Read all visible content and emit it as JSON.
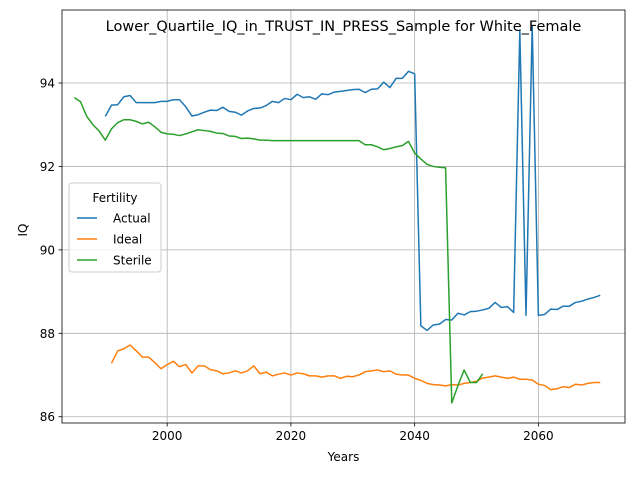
{
  "chart_data": {
    "type": "line",
    "title": "Lower_Quartile_IQ_in_TRUST_IN_PRESS_Sample for White_Female",
    "xlabel": "Years",
    "ylabel": "IQ",
    "xlim": [
      1983,
      2074
    ],
    "ylim": [
      85.85,
      95.75
    ],
    "xticks": [
      2000,
      2020,
      2040,
      2060
    ],
    "yticks": [
      86,
      88,
      90,
      92,
      94
    ],
    "grid": true,
    "legend": {
      "title": "Fertility",
      "placement": "center-left"
    },
    "series": [
      {
        "name": "Actual",
        "color": "#1f77b4",
        "x": [
          1990,
          1991,
          1992,
          1993,
          1994,
          1995,
          1996,
          1997,
          1998,
          1999,
          2000,
          2001,
          2002,
          2003,
          2004,
          2005,
          2006,
          2007,
          2008,
          2009,
          2010,
          2011,
          2012,
          2013,
          2014,
          2015,
          2016,
          2017,
          2018,
          2019,
          2020,
          2021,
          2022,
          2023,
          2024,
          2025,
          2026,
          2027,
          2028,
          2029,
          2030,
          2031,
          2032,
          2033,
          2034,
          2035,
          2036,
          2037,
          2038,
          2039,
          2040,
          2041,
          2042,
          2043,
          2044,
          2045,
          2046,
          2047,
          2048,
          2049,
          2050,
          2051,
          2052,
          2053,
          2054,
          2055,
          2056,
          2057,
          2058,
          2059,
          2060,
          2061,
          2062,
          2063,
          2064,
          2065,
          2066,
          2067,
          2068,
          2069,
          2070
        ],
        "y": [
          93.2,
          93.47,
          93.48,
          93.67,
          93.7,
          93.53,
          93.53,
          93.53,
          93.53,
          93.56,
          93.56,
          93.6,
          93.6,
          93.43,
          93.21,
          93.24,
          93.3,
          93.35,
          93.34,
          93.42,
          93.32,
          93.3,
          93.23,
          93.33,
          93.39,
          93.4,
          93.46,
          93.56,
          93.53,
          93.63,
          93.6,
          93.73,
          93.65,
          93.67,
          93.61,
          93.74,
          93.72,
          93.78,
          93.8,
          93.82,
          93.84,
          93.85,
          93.77,
          93.85,
          93.86,
          94.02,
          93.89,
          94.11,
          94.11,
          94.28,
          94.22,
          88.18,
          88.07,
          88.2,
          88.22,
          88.33,
          88.32,
          88.48,
          88.44,
          88.52,
          88.53,
          88.56,
          88.6,
          88.74,
          88.62,
          88.64,
          88.5,
          95.25,
          88.43,
          95.35,
          88.43,
          88.45,
          88.58,
          88.57,
          88.65,
          88.65,
          88.74,
          88.77,
          88.82,
          88.86,
          88.91
        ]
      },
      {
        "name": "Ideal",
        "color": "#ff7f0e",
        "x": [
          1991,
          1992,
          1993,
          1994,
          1995,
          1996,
          1997,
          1998,
          1999,
          2000,
          2001,
          2002,
          2003,
          2004,
          2005,
          2006,
          2007,
          2008,
          2009,
          2010,
          2011,
          2012,
          2013,
          2014,
          2015,
          2016,
          2017,
          2018,
          2019,
          2020,
          2021,
          2022,
          2023,
          2024,
          2025,
          2026,
          2027,
          2028,
          2029,
          2030,
          2031,
          2032,
          2033,
          2034,
          2035,
          2036,
          2037,
          2038,
          2039,
          2040,
          2041,
          2042,
          2043,
          2044,
          2045,
          2046,
          2047,
          2048,
          2049,
          2050,
          2051,
          2052,
          2053,
          2054,
          2055,
          2056,
          2057,
          2058,
          2059,
          2060,
          2061,
          2062,
          2063,
          2064,
          2065,
          2066,
          2067,
          2068,
          2069,
          2070
        ],
        "y": [
          87.28,
          87.58,
          87.63,
          87.72,
          87.58,
          87.43,
          87.43,
          87.3,
          87.15,
          87.25,
          87.33,
          87.2,
          87.25,
          87.05,
          87.22,
          87.22,
          87.13,
          87.1,
          87.03,
          87.05,
          87.1,
          87.05,
          87.1,
          87.22,
          87.03,
          87.07,
          86.98,
          87.02,
          87.05,
          87.0,
          87.05,
          87.03,
          86.98,
          86.98,
          86.95,
          86.98,
          86.98,
          86.92,
          86.97,
          86.96,
          87.0,
          87.08,
          87.1,
          87.12,
          87.08,
          87.1,
          87.02,
          87.0,
          87.0,
          86.92,
          86.87,
          86.8,
          86.77,
          86.76,
          86.74,
          86.77,
          86.76,
          86.8,
          86.82,
          86.85,
          86.93,
          86.95,
          86.98,
          86.95,
          86.92,
          86.95,
          86.9,
          86.9,
          86.88,
          86.78,
          86.75,
          86.65,
          86.67,
          86.72,
          86.7,
          86.78,
          86.76,
          86.8,
          86.82,
          86.82
        ]
      },
      {
        "name": "Sterile",
        "color": "#2ca02c",
        "x": [
          1985,
          1986,
          1987,
          1988,
          1989,
          1990,
          1991,
          1992,
          1993,
          1994,
          1995,
          1996,
          1997,
          1998,
          1999,
          2000,
          2001,
          2002,
          2003,
          2004,
          2005,
          2006,
          2007,
          2008,
          2009,
          2010,
          2011,
          2012,
          2013,
          2014,
          2015,
          2016,
          2017,
          2018,
          2019,
          2020,
          2021,
          2022,
          2023,
          2024,
          2025,
          2026,
          2027,
          2028,
          2029,
          2030,
          2031,
          2032,
          2033,
          2034,
          2035,
          2036,
          2037,
          2038,
          2039,
          2040,
          2041,
          2042,
          2043,
          2044,
          2045,
          2046,
          2047,
          2048,
          2049,
          2050,
          2051
        ],
        "y": [
          93.65,
          93.55,
          93.2,
          93.0,
          92.85,
          92.63,
          92.9,
          93.05,
          93.12,
          93.12,
          93.08,
          93.02,
          93.06,
          92.95,
          92.82,
          92.78,
          92.77,
          92.74,
          92.78,
          92.83,
          92.88,
          92.86,
          92.84,
          92.8,
          92.79,
          92.73,
          92.72,
          92.67,
          92.68,
          92.66,
          92.63,
          92.63,
          92.62,
          92.62,
          92.62,
          92.62,
          92.62,
          92.62,
          92.62,
          92.62,
          92.62,
          92.62,
          92.62,
          92.62,
          92.62,
          92.62,
          92.62,
          92.52,
          92.52,
          92.47,
          92.4,
          92.43,
          92.47,
          92.5,
          92.6,
          92.32,
          92.18,
          92.05,
          92.0,
          91.98,
          91.97,
          86.33,
          86.75,
          87.12,
          86.82,
          86.82,
          87.03
        ]
      }
    ]
  }
}
